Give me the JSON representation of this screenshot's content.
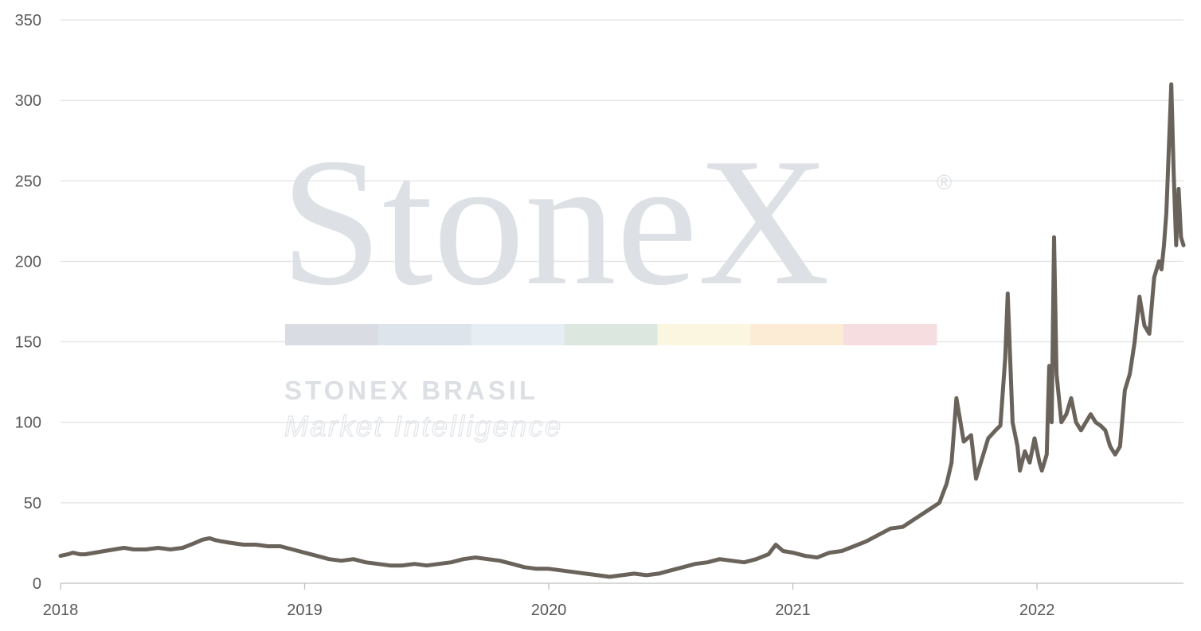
{
  "watermark": {
    "word": "StoneX",
    "registered": "®",
    "brand": "STONEX BRASIL",
    "tagline": "Market Intelligence",
    "stripe_colors": [
      "#d9dde3",
      "#dde4ec",
      "#e6edf3",
      "#dce8df",
      "#fbf6df",
      "#fcecd6",
      "#f5dde0"
    ]
  },
  "chart_data": {
    "type": "line",
    "title": "",
    "xlabel": "",
    "ylabel": "",
    "xlim": [
      2018.0,
      2022.6
    ],
    "ylim": [
      0,
      350
    ],
    "yticks": [
      0,
      50,
      100,
      150,
      200,
      250,
      300,
      350
    ],
    "xticks": [
      2018,
      2019,
      2020,
      2021,
      2022
    ],
    "grid": "horizontal",
    "legend": "none",
    "line_color": "#6a635b",
    "series": [
      {
        "x": [
          2018.0,
          2018.03,
          2018.05,
          2018.08,
          2018.1,
          2018.14,
          2018.18,
          2018.22,
          2018.26,
          2018.3,
          2018.35,
          2018.4,
          2018.45,
          2018.5,
          2018.55,
          2018.58,
          2018.61,
          2018.63,
          2018.66,
          2018.7,
          2018.75,
          2018.8,
          2018.85,
          2018.9,
          2018.95,
          2019.0,
          2019.05,
          2019.1,
          2019.15,
          2019.2,
          2019.25,
          2019.3,
          2019.35,
          2019.4,
          2019.45,
          2019.5,
          2019.55,
          2019.6,
          2019.65,
          2019.7,
          2019.75,
          2019.8,
          2019.85,
          2019.9,
          2019.95,
          2020.0,
          2020.05,
          2020.1,
          2020.15,
          2020.2,
          2020.25,
          2020.3,
          2020.35,
          2020.4,
          2020.45,
          2020.5,
          2020.55,
          2020.6,
          2020.65,
          2020.7,
          2020.75,
          2020.8,
          2020.85,
          2020.9,
          2020.93,
          2020.96,
          2021.0,
          2021.05,
          2021.1,
          2021.15,
          2021.2,
          2021.25,
          2021.3,
          2021.35,
          2021.4,
          2021.45,
          2021.5,
          2021.55,
          2021.6,
          2021.63,
          2021.65,
          2021.67,
          2021.7,
          2021.73,
          2021.75,
          2021.77,
          2021.8,
          2021.83,
          2021.85,
          2021.87,
          2021.88,
          2021.9,
          2021.92,
          2021.93,
          2021.95,
          2021.97,
          2021.99,
          2022.01,
          2022.02,
          2022.04,
          2022.05,
          2022.06,
          2022.07,
          2022.08,
          2022.1,
          2022.12,
          2022.14,
          2022.16,
          2022.18,
          2022.2,
          2022.22,
          2022.24,
          2022.26,
          2022.28,
          2022.3,
          2022.32,
          2022.34,
          2022.36,
          2022.38,
          2022.4,
          2022.42,
          2022.44,
          2022.46,
          2022.48,
          2022.5,
          2022.51,
          2022.52,
          2022.53,
          2022.54,
          2022.55,
          2022.56,
          2022.57,
          2022.58,
          2022.59,
          2022.6
        ],
        "y": [
          17,
          18,
          19,
          18,
          18,
          19,
          20,
          21,
          22,
          21,
          21,
          22,
          21,
          22,
          25,
          27,
          28,
          27,
          26,
          25,
          24,
          24,
          23,
          23,
          21,
          19,
          17,
          15,
          14,
          15,
          13,
          12,
          11,
          11,
          12,
          11,
          12,
          13,
          15,
          16,
          15,
          14,
          12,
          10,
          9,
          9,
          8,
          7,
          6,
          5,
          4,
          5,
          6,
          5,
          6,
          8,
          10,
          12,
          13,
          15,
          14,
          13,
          15,
          18,
          24,
          20,
          19,
          17,
          16,
          19,
          20,
          23,
          26,
          30,
          34,
          35,
          40,
          45,
          50,
          62,
          75,
          115,
          88,
          92,
          65,
          75,
          90,
          95,
          98,
          140,
          180,
          100,
          85,
          70,
          82,
          75,
          90,
          75,
          70,
          80,
          135,
          100,
          215,
          130,
          100,
          105,
          115,
          100,
          95,
          100,
          105,
          100,
          98,
          95,
          85,
          80,
          85,
          120,
          130,
          150,
          178,
          160,
          155,
          190,
          200,
          195,
          210,
          230,
          270,
          310,
          255,
          210,
          245,
          215,
          210
        ]
      }
    ]
  }
}
